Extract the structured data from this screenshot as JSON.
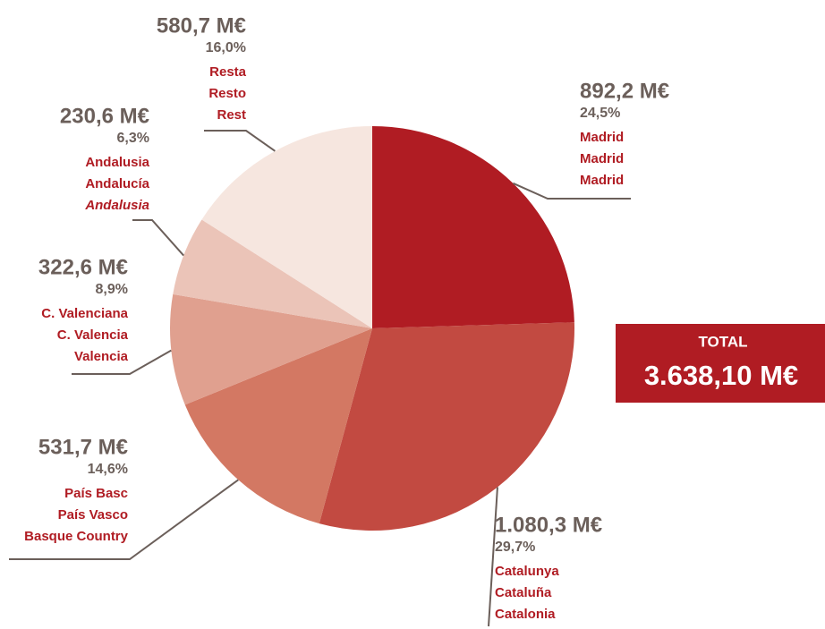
{
  "chart_data": {
    "type": "pie",
    "categories": [
      "Madrid",
      "Catalunya",
      "País Basc",
      "C. Valenciana",
      "Andalusia",
      "Resta"
    ],
    "categories_es": [
      "Madrid",
      "Cataluña",
      "País Vasco",
      "C. Valencia",
      "Andalucía",
      "Resto"
    ],
    "categories_en": [
      "Madrid",
      "Catalonia",
      "Basque Country",
      "Valencia",
      "Andalusia",
      "Rest"
    ],
    "values": [
      892.2,
      1080.3,
      531.7,
      322.6,
      230.6,
      580.7
    ],
    "value_labels": [
      "892,2 M€",
      "1.080,3 M€",
      "531,7 M€",
      "322,6 M€",
      "230,6 M€",
      "580,7 M€"
    ],
    "percentages": [
      24.5,
      29.7,
      14.6,
      8.9,
      6.3,
      16.0
    ],
    "percentage_labels": [
      "24,5%",
      "29,7%",
      "14,6%",
      "8,9%",
      "6,3%",
      "16,0%"
    ],
    "colors": [
      "#b01c23",
      "#c24a41",
      "#d37863",
      "#e0a08f",
      "#ebc4b8",
      "#f6e6df"
    ],
    "total": {
      "title": "TOTAL",
      "label": "3.638,10 M€"
    }
  }
}
